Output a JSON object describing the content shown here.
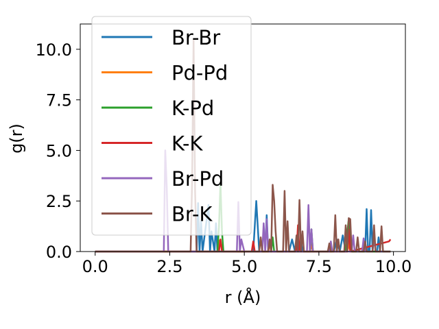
{
  "chart_data": {
    "type": "line",
    "xlabel": "r (Å)",
    "ylabel": "g(r)",
    "xlim": [
      -0.5,
      10.4
    ],
    "ylim": [
      0,
      11.25
    ],
    "xticks": [
      "0.0",
      "2.5",
      "5.0",
      "7.5",
      "10.0"
    ],
    "xtick_values": [
      0,
      2.5,
      5,
      7.5,
      10
    ],
    "yticks": [
      "0.0",
      "2.5",
      "5.0",
      "7.5",
      "10.0"
    ],
    "ytick_values": [
      0,
      2.5,
      5,
      7.5,
      10
    ],
    "grid": false,
    "legend": "top-left",
    "series": [
      {
        "name": "Br-Br",
        "color": "#1f77b4",
        "x": [
          0,
          3.4,
          3.45,
          3.5,
          3.55,
          3.6,
          3.8,
          3.85,
          3.9,
          4.0,
          4.05,
          4.1,
          5.3,
          5.4,
          5.5,
          5.7,
          5.75,
          5.8,
          6.5,
          6.6,
          6.7,
          6.85,
          6.9,
          6.95,
          8.0,
          8.1,
          8.2,
          8.3,
          8.4,
          8.5,
          8.6,
          9.05,
          9.1,
          9.15,
          9.2,
          9.25,
          9.3,
          9.45,
          9.5,
          9.55,
          9.9
        ],
        "y": [
          0,
          0,
          2.4,
          0,
          1.5,
          0,
          2.3,
          0,
          1.0,
          0,
          1.4,
          0,
          0,
          2.5,
          0,
          0,
          1.8,
          0,
          0,
          0.6,
          0,
          0,
          0.6,
          0,
          0,
          0.6,
          0,
          0.8,
          0,
          1.2,
          0,
          0,
          2.1,
          0,
          0,
          2.05,
          0,
          0,
          0.7,
          0,
          0
        ]
      },
      {
        "name": "Pd-Pd",
        "color": "#ff7f0e",
        "x": [
          0,
          4.1,
          4.15,
          4.2,
          4.25,
          4.3,
          5.8,
          5.85,
          5.9,
          7.2,
          7.25,
          7.3,
          8.45,
          8.5,
          8.55,
          9.9
        ],
        "y": [
          0,
          0,
          0.55,
          0.4,
          0.3,
          0,
          0,
          0.4,
          0,
          0,
          0.35,
          0,
          0,
          0.4,
          0,
          0
        ]
      },
      {
        "name": "K-Pd",
        "color": "#2ca02c",
        "x": [
          0,
          4.1,
          4.15,
          4.2,
          4.25,
          4.3,
          5.9,
          5.95,
          6.0,
          7.2,
          7.25,
          7.3,
          8.4,
          8.45,
          8.5,
          8.55,
          8.6,
          9.9
        ],
        "y": [
          0,
          0,
          1.2,
          3.4,
          1.0,
          0,
          0,
          0.7,
          0,
          0,
          1.1,
          0,
          0,
          0.9,
          1.6,
          0.8,
          0,
          0
        ]
      },
      {
        "name": "K-K",
        "color": "#d62728",
        "x": [
          0,
          4.15,
          4.2,
          4.25,
          5.25,
          5.3,
          5.35,
          6.75,
          6.8,
          6.85,
          8.45,
          8.5,
          8.55,
          9.85,
          9.9
        ],
        "y": [
          0,
          0,
          0.6,
          0,
          0,
          0.5,
          0,
          0,
          1.3,
          0,
          0,
          1.1,
          0,
          0.5,
          0.6
        ]
      },
      {
        "name": "Br-Pd",
        "color": "#9467bd",
        "x": [
          0,
          2.3,
          2.35,
          2.4,
          2.45,
          2.5,
          4.75,
          4.8,
          4.85,
          4.9,
          5.0,
          5.6,
          5.65,
          5.7,
          5.75,
          5.8,
          7.1,
          7.15,
          7.2,
          7.25,
          7.3,
          7.85,
          7.9,
          7.95,
          8.6,
          8.65,
          8.7,
          8.95,
          9.0,
          9.05,
          9.3,
          9.35,
          9.4,
          9.9
        ],
        "y": [
          0,
          0,
          5.0,
          3.2,
          0,
          0,
          0,
          2.45,
          0,
          0.6,
          0,
          0,
          1.4,
          0,
          1.6,
          0,
          0,
          2.3,
          0,
          1.1,
          0,
          0,
          0.5,
          0,
          0,
          0.8,
          0,
          0,
          0.65,
          0,
          0,
          0.8,
          0,
          0
        ]
      },
      {
        "name": "Br-K",
        "color": "#8c564b",
        "x": [
          0,
          3.2,
          3.25,
          3.3,
          3.35,
          3.4,
          5.5,
          5.55,
          5.6,
          5.8,
          5.85,
          5.9,
          5.95,
          6.0,
          6.05,
          6.1,
          6.3,
          6.35,
          6.4,
          6.45,
          6.5,
          6.7,
          6.75,
          6.8,
          6.85,
          6.9,
          6.95,
          7.0,
          7.8,
          7.85,
          7.9,
          8.0,
          8.05,
          8.1,
          8.15,
          8.2,
          8.35,
          8.4,
          8.45,
          8.5,
          8.55,
          8.6,
          8.75,
          8.8,
          8.85,
          9.0,
          9.05,
          9.1,
          9.3,
          9.35,
          9.4,
          9.55,
          9.6,
          9.65,
          9.9
        ],
        "y": [
          0,
          0,
          3.5,
          10.5,
          3.0,
          0,
          0,
          0.7,
          0,
          0,
          0.6,
          0,
          3.3,
          2.5,
          1.0,
          0,
          0,
          3.0,
          0,
          1.5,
          0,
          0,
          0.8,
          0,
          2.55,
          0,
          1.0,
          0,
          0,
          0.4,
          0,
          0,
          1.8,
          0,
          0.6,
          0,
          0,
          1.3,
          0,
          1.65,
          1.6,
          0,
          0,
          0.7,
          0,
          0,
          0.5,
          0,
          0,
          1.3,
          0,
          0,
          1.25,
          0,
          0
        ]
      }
    ]
  }
}
